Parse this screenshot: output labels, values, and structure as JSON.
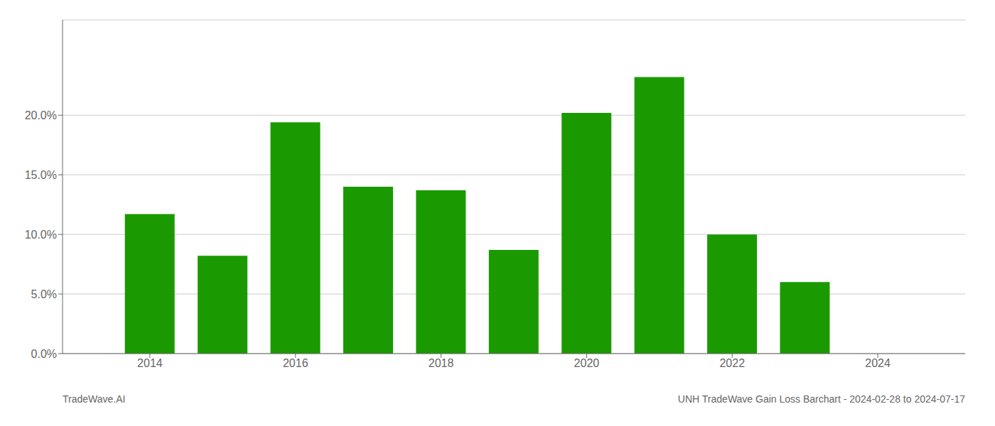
{
  "chart_data": {
    "type": "bar",
    "title": "UNH TradeWave Gain Loss Barchart - 2024-02-28 to 2024-07-17",
    "annotations": [
      "TradeWave.AI"
    ],
    "x": [
      2014,
      2015,
      2016,
      2017,
      2018,
      2019,
      2020,
      2021,
      2022,
      2023
    ],
    "values": [
      0.117,
      0.082,
      0.194,
      0.14,
      0.137,
      0.087,
      0.202,
      0.232,
      0.1,
      0.06
    ],
    "color": "#1a9a00",
    "xlim": [
      2012.8,
      2025.2
    ],
    "xticks": [
      2014,
      2016,
      2018,
      2020,
      2022,
      2024
    ],
    "ylim": [
      0,
      0.28
    ],
    "yticks": [
      {
        "value": 0.0,
        "label": "0.0%"
      },
      {
        "value": 0.05,
        "label": "5.0%"
      },
      {
        "value": 0.1,
        "label": "10.0%"
      },
      {
        "value": 0.15,
        "label": "15.0%"
      },
      {
        "value": 0.2,
        "label": "20.0%"
      }
    ],
    "grid": true
  }
}
